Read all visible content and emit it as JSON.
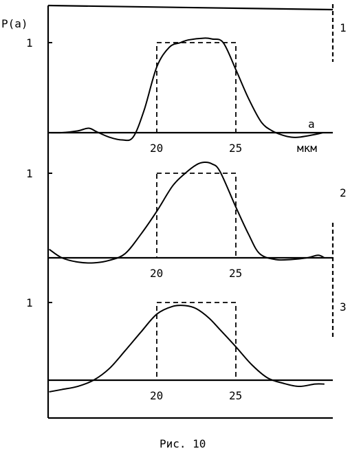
{
  "figure": {
    "caption": "Рис. 10",
    "ylabel": "P(a)",
    "xlabel": "a",
    "unit": "мкм"
  },
  "chart_data": [
    {
      "type": "line",
      "panel_label": "1",
      "ytick": "1",
      "xticks": [
        "20",
        "25"
      ],
      "xlim": [
        13,
        33
      ],
      "ylim": [
        -0.15,
        1.2
      ],
      "rectangle": {
        "x0": 20,
        "x1": 25,
        "height": 1.0
      },
      "series": [
        {
          "x": [
            13.2,
            14,
            15,
            15.7,
            16.2,
            17,
            17.8,
            18.5,
            19.2,
            20,
            20.8,
            21.5,
            22,
            23,
            23.5,
            24.2,
            25,
            25.8,
            26.6,
            27.3,
            28,
            28.5,
            29,
            30,
            30.5
          ],
          "y": [
            0.0,
            0.0,
            0.02,
            0.05,
            0.01,
            -0.05,
            -0.08,
            -0.05,
            0.25,
            0.73,
            0.95,
            1.0,
            1.03,
            1.05,
            1.04,
            1.0,
            0.7,
            0.38,
            0.12,
            0.02,
            -0.03,
            -0.05,
            -0.05,
            -0.02,
            0.0
          ]
        }
      ]
    },
    {
      "type": "line",
      "panel_label": "2",
      "ytick": "1",
      "xticks": [
        "20",
        "25"
      ],
      "xlim": [
        13,
        33
      ],
      "ylim": [
        -0.15,
        1.2
      ],
      "rectangle": {
        "x0": 20,
        "x1": 25,
        "height": 1.0
      },
      "series": [
        {
          "x": [
            13.2,
            14,
            15,
            16,
            17,
            18,
            19,
            20,
            21,
            21.8,
            22.5,
            23,
            23.5,
            24,
            25,
            25.8,
            26.5,
            27.5,
            28.5,
            29.5,
            30.2,
            30.6
          ],
          "y": [
            0.1,
            0.0,
            -0.05,
            -0.06,
            -0.03,
            0.05,
            0.28,
            0.55,
            0.85,
            1.0,
            1.1,
            1.13,
            1.11,
            1.02,
            0.6,
            0.28,
            0.05,
            -0.02,
            -0.02,
            0.0,
            0.03,
            0.0
          ]
        }
      ]
    },
    {
      "type": "line",
      "panel_label": "3",
      "ytick": "1",
      "xticks": [
        "20",
        "25"
      ],
      "xlim": [
        13,
        33
      ],
      "ylim": [
        -0.15,
        1.2
      ],
      "rectangle": {
        "x0": 20,
        "x1": 25,
        "height": 1.0
      },
      "series": [
        {
          "x": [
            13.2,
            14,
            15,
            16,
            17,
            18,
            19,
            20,
            21,
            21.8,
            22.5,
            23.3,
            24,
            25,
            26,
            27,
            28,
            29,
            30,
            30.6
          ],
          "y": [
            -0.15,
            -0.12,
            -0.08,
            0.0,
            0.15,
            0.38,
            0.62,
            0.85,
            0.95,
            0.96,
            0.92,
            0.8,
            0.65,
            0.43,
            0.2,
            0.03,
            -0.04,
            -0.08,
            -0.05,
            -0.05
          ]
        }
      ]
    }
  ]
}
